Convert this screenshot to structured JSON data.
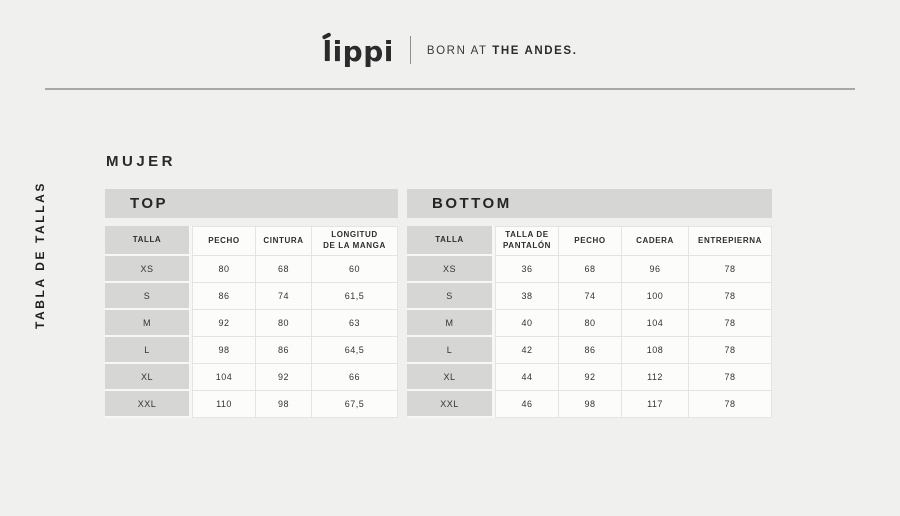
{
  "header": {
    "logo_text": "lippi",
    "tagline_regular": "BORN AT ",
    "tagline_bold": "THE ANDES."
  },
  "sidebar_label": "TABLA DE TALLAS",
  "section_title": "MUJER",
  "tables": [
    {
      "title": "TOP",
      "columns": [
        "TALLA",
        "PECHO",
        "CINTURA",
        "LONGITUD\nDE LA MANGA"
      ],
      "rows": [
        [
          "XS",
          "80",
          "68",
          "60"
        ],
        [
          "S",
          "86",
          "74",
          "61,5"
        ],
        [
          "M",
          "92",
          "80",
          "63"
        ],
        [
          "L",
          "98",
          "86",
          "64,5"
        ],
        [
          "XL",
          "104",
          "92",
          "66"
        ],
        [
          "XXL",
          "110",
          "98",
          "67,5"
        ]
      ]
    },
    {
      "title": "BOTTOM",
      "columns": [
        "TALLA",
        "TALLA DE\nPANTALÓN",
        "PECHO",
        "CADERA",
        "ENTREPIERNA"
      ],
      "rows": [
        [
          "XS",
          "36",
          "68",
          "96",
          "78"
        ],
        [
          "S",
          "38",
          "74",
          "100",
          "78"
        ],
        [
          "M",
          "40",
          "80",
          "104",
          "78"
        ],
        [
          "L",
          "42",
          "86",
          "108",
          "78"
        ],
        [
          "XL",
          "44",
          "92",
          "112",
          "78"
        ],
        [
          "XXL",
          "46",
          "98",
          "117",
          "78"
        ]
      ]
    }
  ],
  "colors": {
    "background": "#f0f0ee",
    "bar_gray": "#d6d6d4",
    "cell_white": "#fcfcfb",
    "cell_border": "#e4e4e2",
    "text_dark": "#2b2b2b",
    "rule_gray": "#a8a8a6"
  }
}
